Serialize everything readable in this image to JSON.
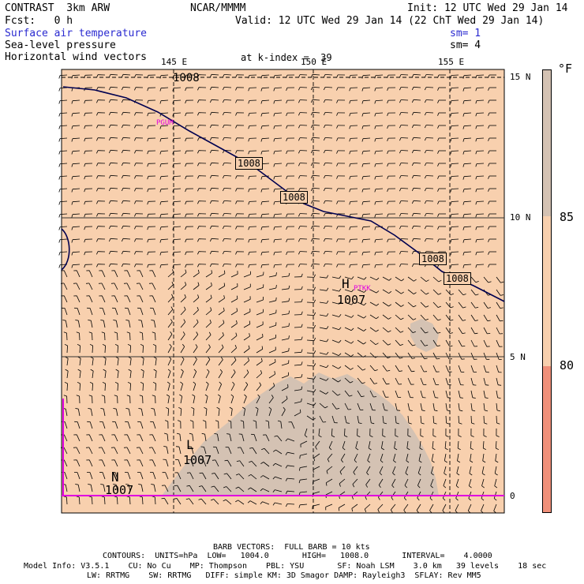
{
  "header": {
    "model": "CONTRAST  3km ARW",
    "center": "NCAR/MMMM",
    "init": "Init: 12 UTC Wed 29 Jan 14",
    "fcst": "Fcst:   0 h",
    "valid": "Valid: 12 UTC Wed 29 Jan 14 (22 ChT Wed 29 Jan 14)",
    "fields": [
      {
        "name": "Surface air temperature",
        "color": "#2a2ad0"
      },
      {
        "name": "Sea-level pressure",
        "color": "#000000"
      },
      {
        "name": "Horizontal wind vectors",
        "color": "#000000"
      }
    ],
    "sm1": "sm= 1",
    "sm2": "sm= 4",
    "kindex": "at k-index =  39"
  },
  "map": {
    "lon_labels": [
      "145 E",
      "150 E",
      "155 E"
    ],
    "lat_labels": [
      "15 N",
      "10 N",
      "5 N",
      "0"
    ],
    "isobar_labels": [
      "1008",
      "1008",
      "1008",
      "1008",
      "1008"
    ],
    "highs": [
      {
        "symbol": "H",
        "value": "1007"
      }
    ],
    "lows": [
      {
        "symbol": "L",
        "value": "1007"
      },
      {
        "symbol": "N",
        "value": "1007"
      }
    ],
    "stations": [
      "PGUM",
      "PTKK"
    ],
    "colors": {
      "warm": "#f8d0ae",
      "hot": "#d4c2b3",
      "isobar": "#000050",
      "station": "#e000e0"
    }
  },
  "colorbar": {
    "unit": "°F",
    "labels": [
      "85",
      "80"
    ],
    "colors": [
      "#d4c2b3",
      "#f8d0ae",
      "#f0907a"
    ]
  },
  "footer": {
    "barb": "BARB VECTORS:  FULL BARB = 10 kts",
    "contours": "CONTOURS:  UNITS=hPa  LOW=   1004.0       HIGH=   1008.0       INTERVAL=    4.0000",
    "model_info": "Model Info: V3.5.1    CU: No Cu    MP: Thompson    PBL: YSU       SF: Noah LSM    3.0 km   39 levels    18 sec",
    "physics": "LW: RRTMG    SW: RRTMG   DIFF: simple KM: 3D Smagor DAMP: Rayleigh3  SFLAY: Rev MM5"
  }
}
